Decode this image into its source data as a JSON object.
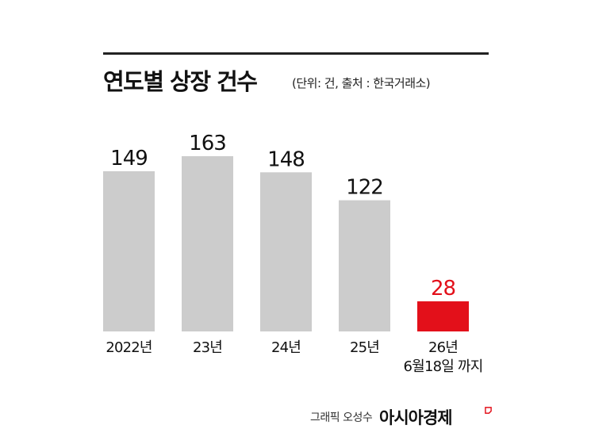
{
  "title": "연도별 상장 건수",
  "unit_note": "(단위: 건, 출처 : 한국거래소)",
  "credit": "그래픽 오성수",
  "brand": "아시아경제",
  "colors": {
    "bar": "#cccccc",
    "highlight": "#e3101a",
    "text": "#111111"
  },
  "chart_data": {
    "type": "bar",
    "title": "연도별 상장 건수",
    "categories": [
      "2022년",
      "23년",
      "24년",
      "25년",
      "26년\n6월18일 까지"
    ],
    "values": [
      149,
      163,
      148,
      122,
      28
    ],
    "highlight_index": 4,
    "ylim": [
      0,
      170
    ],
    "grid": false,
    "xlabel": "",
    "ylabel": ""
  }
}
